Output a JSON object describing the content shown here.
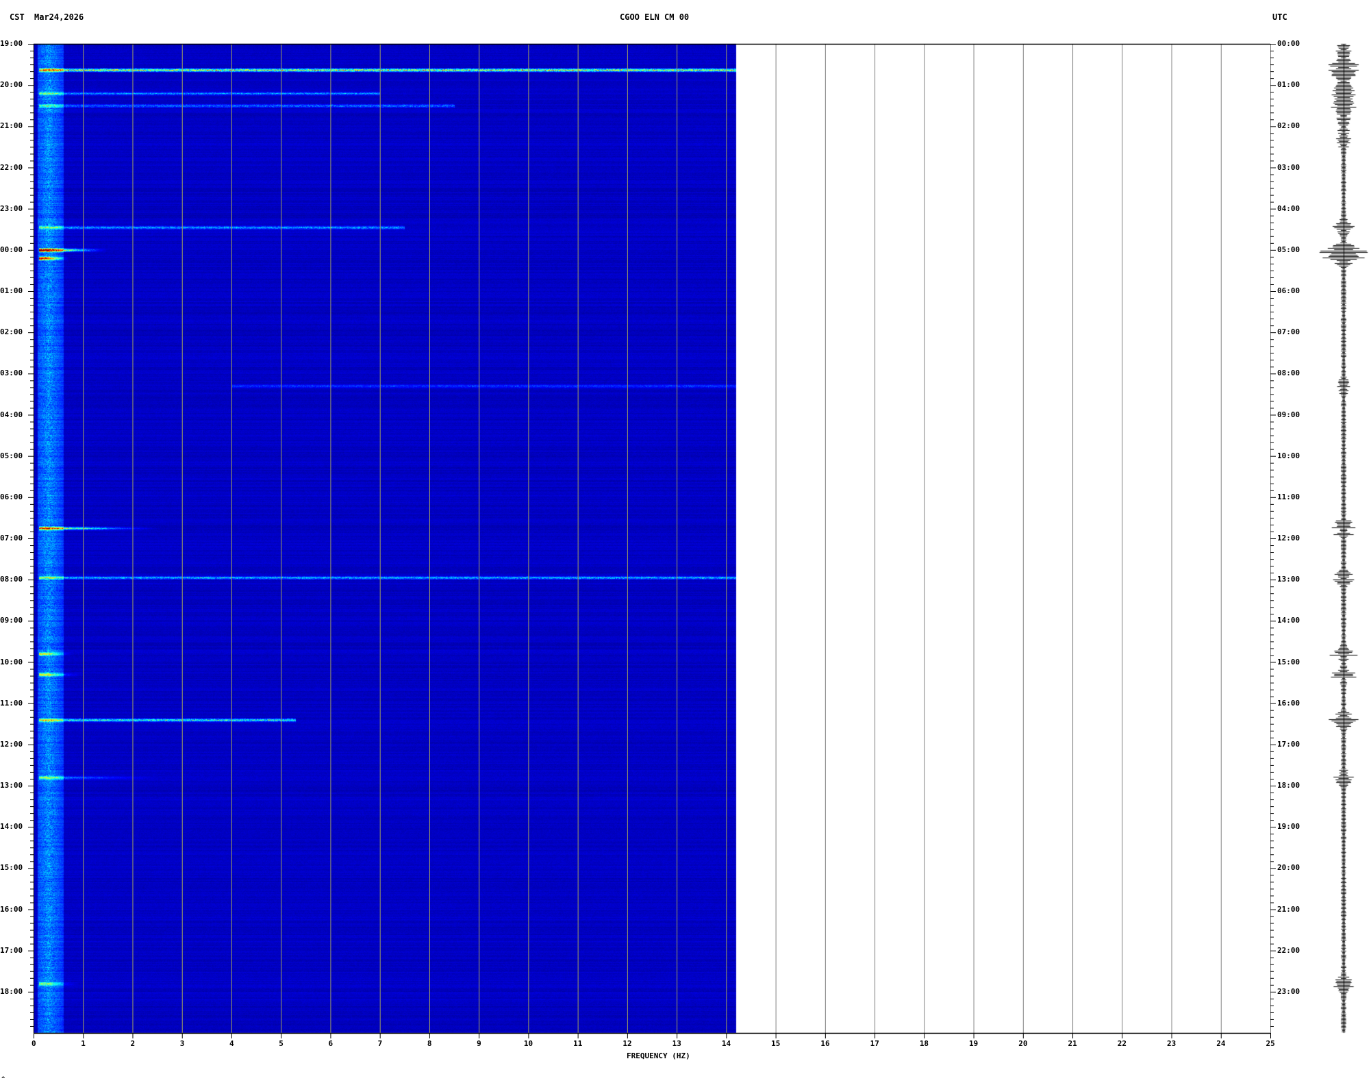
{
  "header": {
    "left_timezone": "CST",
    "date": "Mar24,2026",
    "station": "CGOO ELN CM 00",
    "right_timezone": "UTC"
  },
  "footer_mark": "^",
  "chart_data": {
    "type": "heatmap",
    "title": "CGOO ELN CM 00",
    "xlabel": "FREQUENCY (HZ)",
    "xlim": [
      0,
      25
    ],
    "x_ticks": [
      "0",
      "1",
      "2",
      "3",
      "4",
      "5",
      "6",
      "7",
      "8",
      "9",
      "10",
      "11",
      "12",
      "13",
      "14",
      "15",
      "16",
      "17",
      "18",
      "19",
      "20",
      "21",
      "22",
      "23",
      "24",
      "25"
    ],
    "data_max_frequency_hz": 14.2,
    "y_left_label": "CST",
    "y_left_ticks": [
      "19:00",
      "20:00",
      "21:00",
      "22:00",
      "23:00",
      "00:00",
      "01:00",
      "02:00",
      "03:00",
      "04:00",
      "05:00",
      "06:00",
      "07:00",
      "08:00",
      "09:00",
      "10:00",
      "11:00",
      "12:00",
      "13:00",
      "14:00",
      "15:00",
      "16:00",
      "17:00",
      "18:00"
    ],
    "y_right_label": "UTC",
    "y_right_ticks": [
      "00:00",
      "01:00",
      "02:00",
      "03:00",
      "04:00",
      "05:00",
      "06:00",
      "07:00",
      "08:00",
      "09:00",
      "10:00",
      "11:00",
      "12:00",
      "13:00",
      "14:00",
      "15:00",
      "16:00",
      "17:00",
      "18:00",
      "19:00",
      "20:00",
      "21:00",
      "22:00",
      "23:00"
    ],
    "grid": true,
    "colormap": [
      "#00008c",
      "#0000ff",
      "#00ffff",
      "#ffff00",
      "#ff0000",
      "#8c0000"
    ],
    "events": [
      {
        "utc_hour": 0.63,
        "fmin": 0.1,
        "fmax": 14.2,
        "intensity": 0.75
      },
      {
        "utc_hour": 1.2,
        "fmin": 0.1,
        "fmax": 7,
        "intensity": 0.35
      },
      {
        "utc_hour": 1.5,
        "fmin": 0.1,
        "fmax": 8.5,
        "intensity": 0.35
      },
      {
        "utc_hour": 4.45,
        "fmin": 0.1,
        "fmax": 7.5,
        "intensity": 0.4
      },
      {
        "utc_hour": 5.0,
        "fmin": 0.1,
        "fmax": 1.5,
        "intensity": 1.0
      },
      {
        "utc_hour": 5.2,
        "fmin": 0.1,
        "fmax": 0.7,
        "intensity": 0.9
      },
      {
        "utc_hour": 8.3,
        "fmin": 4,
        "fmax": 14.2,
        "intensity": 0.25
      },
      {
        "utc_hour": 11.75,
        "fmin": 0.1,
        "fmax": 2.5,
        "intensity": 0.75
      },
      {
        "utc_hour": 12.95,
        "fmin": 0.1,
        "fmax": 14.2,
        "intensity": 0.45
      },
      {
        "utc_hour": 14.8,
        "fmin": 0.1,
        "fmax": 0.8,
        "intensity": 0.5
      },
      {
        "utc_hour": 15.3,
        "fmin": 0.1,
        "fmax": 1.0,
        "intensity": 0.5
      },
      {
        "utc_hour": 16.4,
        "fmin": 0.1,
        "fmax": 5.3,
        "intensity": 0.55
      },
      {
        "utc_hour": 17.8,
        "fmin": 0.1,
        "fmax": 2.5,
        "intensity": 0.35
      },
      {
        "utc_hour": 22.8,
        "fmin": 0.1,
        "fmax": 0.9,
        "intensity": 0.4
      }
    ]
  }
}
